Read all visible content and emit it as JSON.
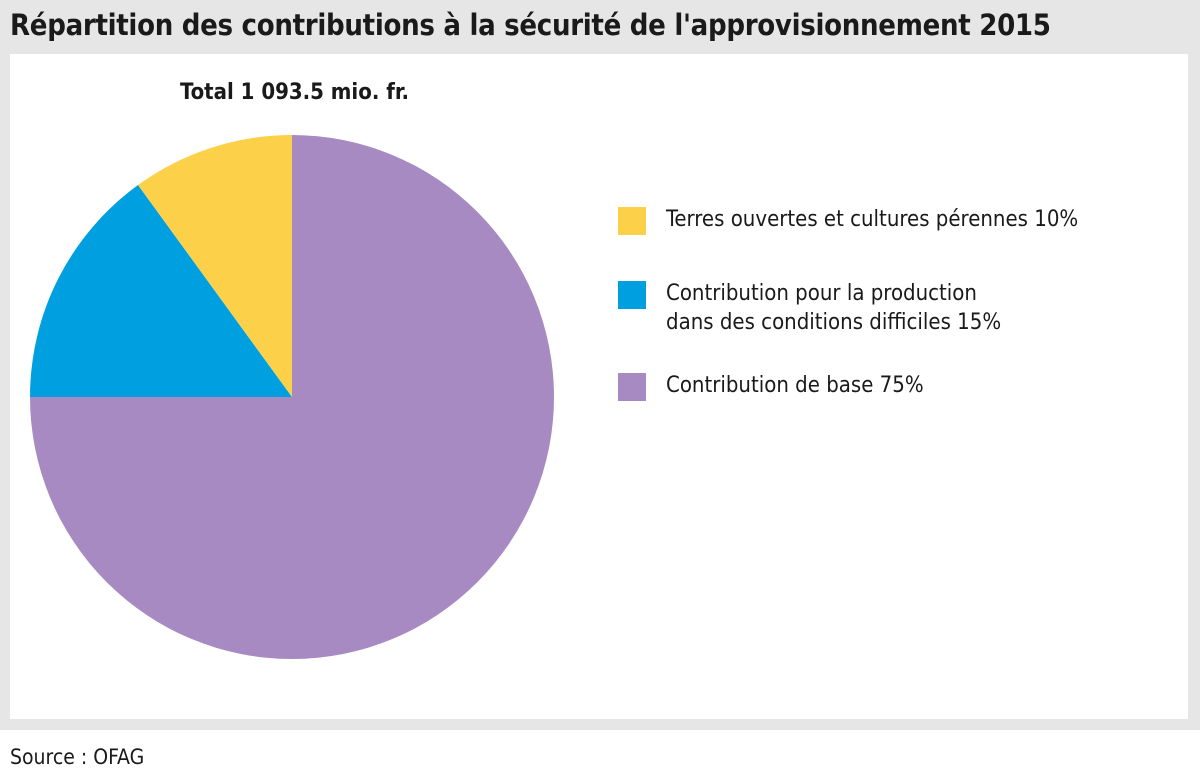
{
  "title": "Répartition des contributions à la sécurité de l'approvisionnement 2015",
  "source": "Source : OFAG",
  "chart_data": {
    "type": "pie",
    "subtitle": "Total 1 093.5 mio. fr.",
    "slices": [
      {
        "label": "Terres ouvertes et cultures pérennes 10%",
        "value": 10,
        "color": "#fdd04a"
      },
      {
        "label": "Contribution pour la production\ndans des conditions difficiles 15%",
        "value": 15,
        "color": "#009fe0"
      },
      {
        "label": "Contribution de base 75%",
        "value": 75,
        "color": "#a78ac2"
      }
    ],
    "legend_position": "right"
  }
}
